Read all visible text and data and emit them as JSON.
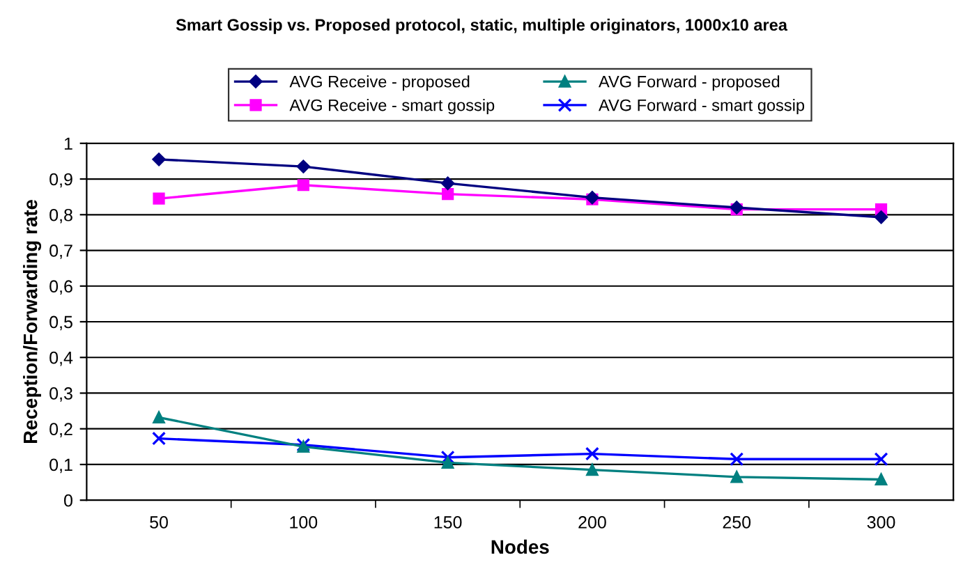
{
  "chart_data": {
    "type": "line",
    "title": "Smart Gossip vs. Proposed protocol, static, multiple originators, 1000x10 area",
    "xlabel": "Nodes",
    "ylabel": "Reception/Forwarding rate",
    "categories": [
      "50",
      "100",
      "150",
      "200",
      "250",
      "300"
    ],
    "series": [
      {
        "name": "AVG Receive - proposed",
        "color": "#000080",
        "marker": "diamond",
        "values": [
          0.955,
          0.935,
          0.888,
          0.848,
          0.82,
          0.793
        ]
      },
      {
        "name": "AVG Receive - smart gossip",
        "color": "#ff00ff",
        "marker": "square",
        "values": [
          0.845,
          0.883,
          0.858,
          0.843,
          0.815,
          0.815
        ]
      },
      {
        "name": "AVG Forward - proposed",
        "color": "#008080",
        "marker": "triangle",
        "values": [
          0.232,
          0.15,
          0.105,
          0.085,
          0.065,
          0.058
        ]
      },
      {
        "name": "AVG Forward - smart gossip",
        "color": "#0000ff",
        "marker": "cross",
        "values": [
          0.173,
          0.155,
          0.12,
          0.13,
          0.115,
          0.115
        ]
      }
    ],
    "ylim": [
      0,
      1
    ],
    "yticks": [
      0,
      {
        "value": 0.1,
        "label": "0,1"
      },
      {
        "value": 0.2,
        "label": "0,2"
      },
      {
        "value": 0.3,
        "label": "0,3"
      },
      {
        "value": 0.4,
        "label": "0,4"
      },
      {
        "value": 0.5,
        "label": "0,5"
      },
      {
        "value": 0.6,
        "label": "0,6"
      },
      {
        "value": 0.7,
        "label": "0,7"
      },
      {
        "value": 0.8,
        "label": "0,8"
      },
      {
        "value": 0.9,
        "label": "0,9"
      },
      1
    ],
    "grid": "y",
    "legend": "top",
    "line_style": "solid"
  }
}
